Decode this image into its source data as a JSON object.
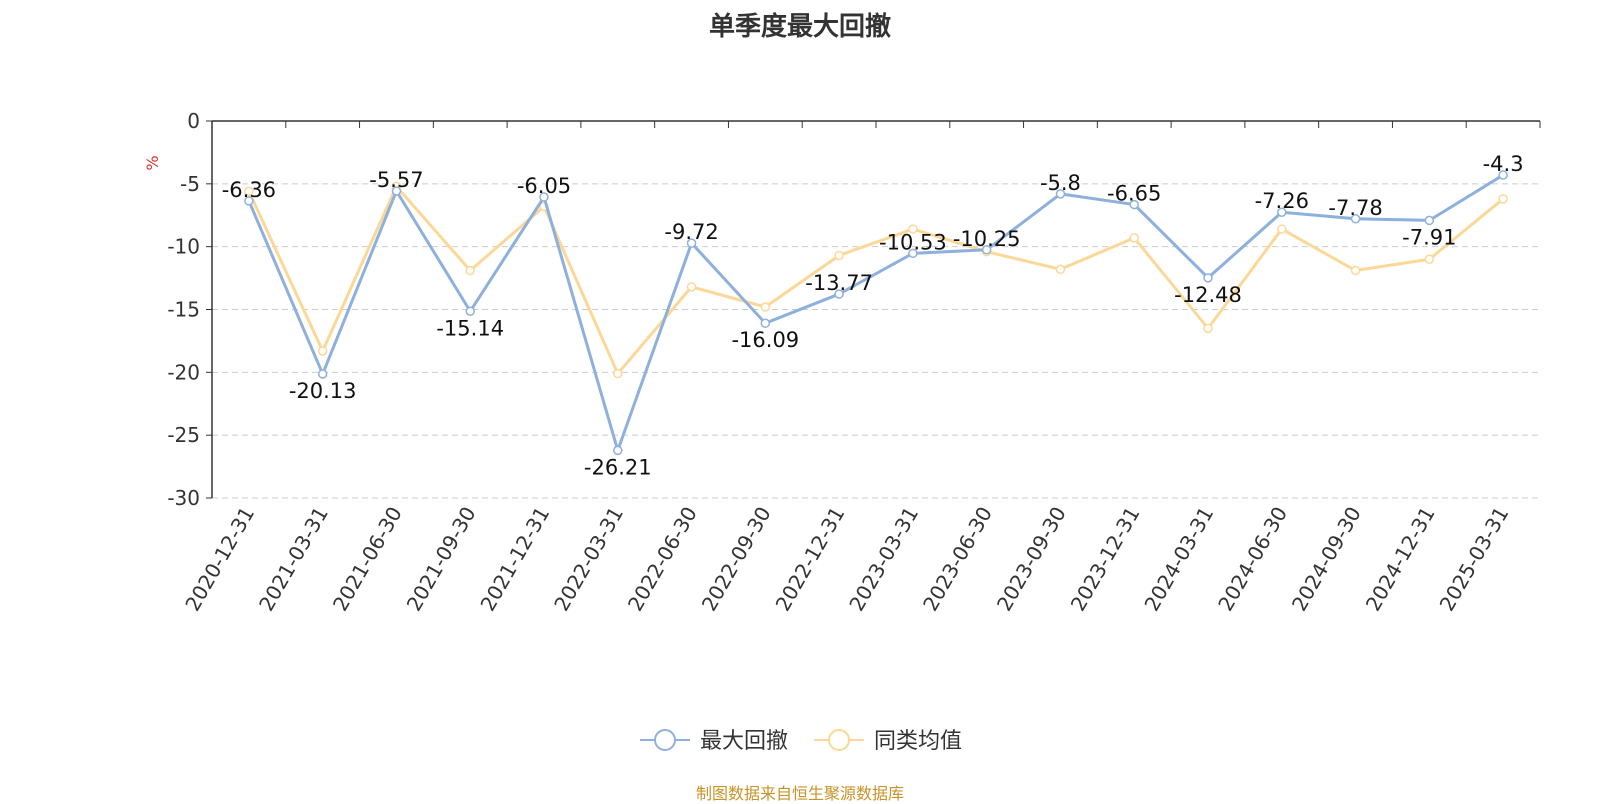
{
  "title": "单季度最大回撤",
  "footer": "制图数据来自恒生聚源数据库",
  "chart_data": {
    "type": "line",
    "title": "单季度最大回撤",
    "ylabel": "%",
    "ylim": [
      -30,
      0
    ],
    "yticks": [
      0,
      -5,
      -10,
      -15,
      -20,
      -25,
      -30
    ],
    "grid": true,
    "legend_position": "bottom",
    "categories": [
      "2020-12-31",
      "2021-03-31",
      "2021-06-30",
      "2021-09-30",
      "2021-12-31",
      "2022-03-31",
      "2022-06-30",
      "2022-09-30",
      "2022-12-31",
      "2023-03-31",
      "2023-06-30",
      "2023-09-30",
      "2023-12-31",
      "2024-03-31",
      "2024-06-30",
      "2024-09-30",
      "2024-12-31",
      "2025-03-31"
    ],
    "series": [
      {
        "name": "最大回撤",
        "color": "#8eb0dc",
        "show_labels": true,
        "values": [
          -6.36,
          -20.13,
          -5.57,
          -15.14,
          -6.05,
          -26.21,
          -9.72,
          -16.09,
          -13.77,
          -10.53,
          -10.25,
          -5.8,
          -6.65,
          -12.48,
          -7.26,
          -7.78,
          -7.91,
          -4.3
        ]
      },
      {
        "name": "同类均值",
        "color": "#fcd898",
        "show_labels": false,
        "values": [
          -5.6,
          -18.3,
          -5.2,
          -11.9,
          -6.8,
          -20.1,
          -13.2,
          -14.8,
          -10.7,
          -8.6,
          -10.4,
          -11.8,
          -9.3,
          -16.5,
          -8.6,
          -11.9,
          -11.0,
          -6.2
        ]
      }
    ]
  }
}
